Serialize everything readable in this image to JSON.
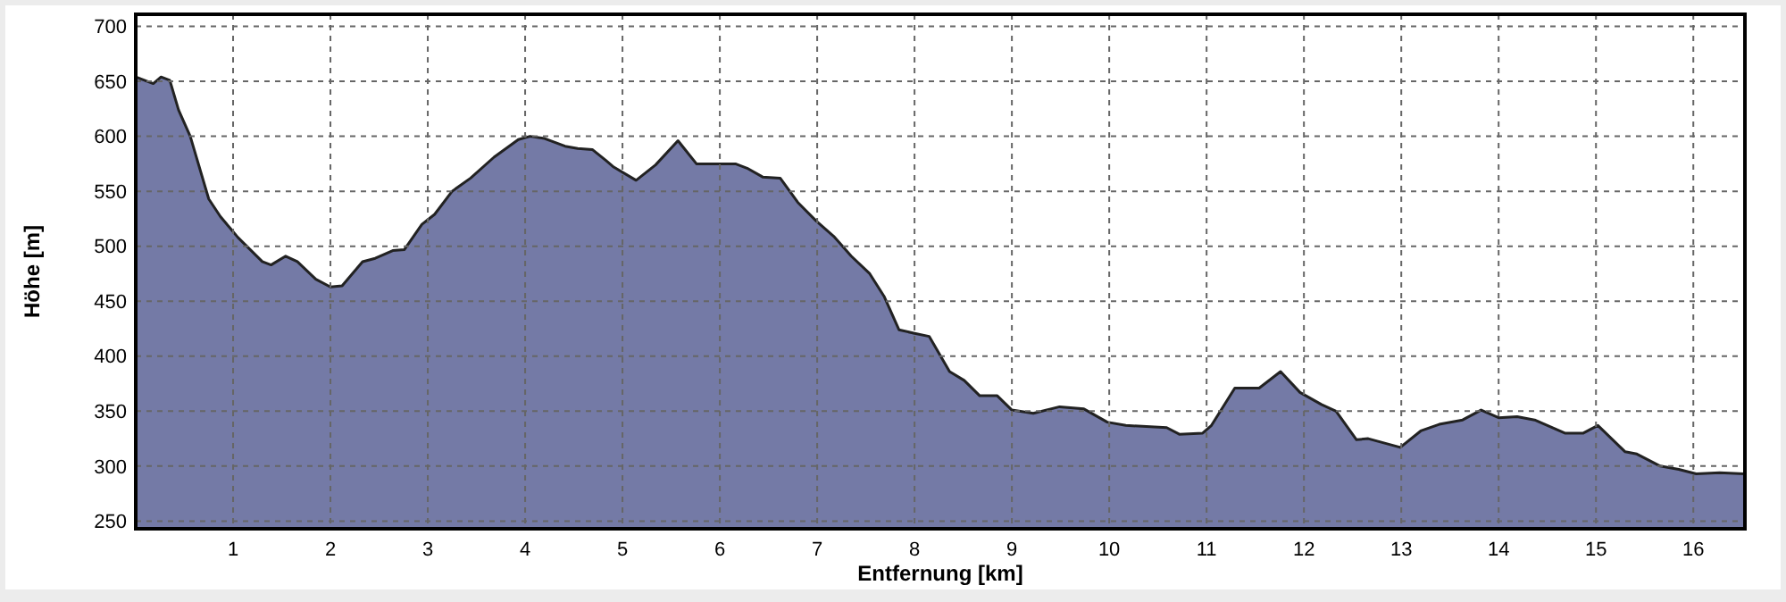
{
  "chart_data": {
    "type": "area",
    "xlabel": "Entfernung [km]",
    "ylabel": "Höhe [m]",
    "xlim": [
      0,
      16.53
    ],
    "xticks": [
      1,
      2,
      3,
      4,
      5,
      6,
      7,
      8,
      9,
      10,
      11,
      12,
      13,
      14,
      15,
      16
    ],
    "ylim": [
      243,
      711
    ],
    "yticks": [
      250,
      300,
      350,
      400,
      450,
      500,
      550,
      600,
      650,
      700
    ],
    "grid": true,
    "series": [
      {
        "color": "#747aa6",
        "x": [
          0,
          0.18,
          0.26,
          0.35,
          0.44,
          0.56,
          0.75,
          0.87,
          1.05,
          1.3,
          1.39,
          1.54,
          1.66,
          1.85,
          2.0,
          2.12,
          2.33,
          2.46,
          2.64,
          2.76,
          2.94,
          3.07,
          3.25,
          3.44,
          3.68,
          3.93,
          4.05,
          4.2,
          4.41,
          4.54,
          4.69,
          4.83,
          4.91,
          5.14,
          5.34,
          5.57,
          5.76,
          6.16,
          6.28,
          6.44,
          6.62,
          6.8,
          6.99,
          7.17,
          7.35,
          7.54,
          7.69,
          7.84,
          7.99,
          8.15,
          8.36,
          8.51,
          8.67,
          8.85,
          9.0,
          9.22,
          9.49,
          9.74,
          9.98,
          10.17,
          10.59,
          10.72,
          10.96,
          11.05,
          11.29,
          11.54,
          11.76,
          11.96,
          12.18,
          12.33,
          12.54,
          12.66,
          12.99,
          13.2,
          13.39,
          13.63,
          13.82,
          14.0,
          14.19,
          14.37,
          14.68,
          14.87,
          15.02,
          15.3,
          15.42,
          15.66,
          15.85,
          16.03,
          16.27,
          16.52
        ],
        "values": [
          654,
          648,
          654,
          651,
          624,
          600,
          543,
          527,
          508,
          486,
          483,
          491,
          486,
          470,
          463,
          464,
          486,
          489,
          496,
          497,
          520,
          529,
          550,
          562,
          581,
          597,
          600,
          598,
          591,
          589,
          588,
          578,
          572,
          560,
          574,
          596,
          575,
          575,
          571,
          563,
          562,
          540,
          523,
          509,
          491,
          475,
          454,
          424,
          421,
          418,
          386,
          378,
          364,
          364,
          351,
          348,
          354,
          352,
          340,
          337,
          335,
          329,
          330,
          337,
          371,
          371,
          386,
          367,
          356,
          350,
          324,
          325,
          317,
          332,
          338,
          342,
          351,
          344,
          345,
          342,
          330,
          330,
          337,
          313,
          311,
          300,
          297,
          293,
          294,
          293
        ]
      }
    ]
  }
}
